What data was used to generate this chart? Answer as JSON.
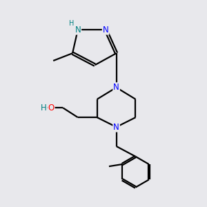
{
  "bg_color": "#e8e8ec",
  "atom_color_N": "#0000ff",
  "atom_color_O": "#ff0000",
  "atom_color_NH": "#008080",
  "atom_color_H": "#008080",
  "line_color": "#000000",
  "line_width": 1.6,
  "font_size_atom": 8.5,
  "font_size_H": 7.0,
  "figsize": [
    3.0,
    3.0
  ],
  "dpi": 100,
  "xlim": [
    0.5,
    9.5
  ],
  "ylim": [
    1.0,
    10.5
  ]
}
